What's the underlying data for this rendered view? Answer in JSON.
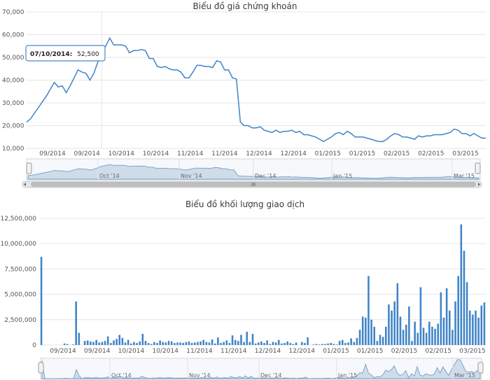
{
  "chart_data": [
    {
      "type": "line",
      "title": "Biểu đồ giá chứng khoán",
      "ylim": [
        10000,
        70000
      ],
      "y_ticks": [
        "10,000",
        "20,000",
        "30,000",
        "40,000",
        "50,000",
        "60,000",
        "70,000"
      ],
      "x_ticks": [
        "09/2014",
        "09/2014",
        "10/2014",
        "10/2014",
        "11/2014",
        "11/2014",
        "12/2014",
        "12/2014",
        "01/2015",
        "01/2015",
        "02/2015",
        "02/2015",
        "03/2015"
      ],
      "navigator_labels": [
        "Oct '14",
        "Nov '14",
        "Dec '14",
        "Jan '15",
        "Mar '15"
      ],
      "series": [
        {
          "values": [
            21500,
            23000,
            25500,
            28000,
            30500,
            33000,
            36000,
            39000,
            37000,
            37500,
            34500,
            37500,
            41000,
            44500,
            43500,
            43000,
            40000,
            43000,
            48000,
            52500,
            55000,
            58500,
            55500,
            55500,
            55500,
            55000,
            52000,
            53000,
            53000,
            53500,
            53000,
            49500,
            49500,
            46000,
            45500,
            46000,
            45000,
            44500,
            44500,
            43500,
            41000,
            41000,
            43500,
            46500,
            46500,
            46000,
            46000,
            45500,
            48500,
            48000,
            44500,
            44500,
            41000,
            40500,
            21500,
            20000,
            20000,
            19000,
            19000,
            19500,
            18000,
            17500,
            17000,
            18000,
            17000,
            17500,
            17500,
            18000,
            17000,
            17500,
            16000,
            16000,
            15500,
            15000,
            14000,
            13000,
            14000,
            15000,
            16500,
            17000,
            16000,
            17500,
            16500,
            15000,
            15000,
            15000,
            14500,
            14000,
            13500,
            13000,
            13000,
            14000,
            15500,
            16500,
            16000,
            15000,
            15000,
            14500,
            14000,
            15500,
            15000,
            15500,
            15500,
            16000,
            16000,
            16000,
            16500,
            17000,
            18500,
            18000,
            16500,
            16500,
            15500,
            16500,
            15500,
            14500,
            14500
          ]
        }
      ],
      "tooltip": {
        "date": "07/10/2014:",
        "value": "52,500"
      }
    },
    {
      "type": "bar",
      "title": "Biểu đồ khối lượng giao dịch",
      "ylim": [
        0,
        12500000
      ],
      "y_ticks": [
        "0",
        "2,500,000",
        "5,000,000",
        "7,500,000",
        "10,000,000",
        "12,500,000"
      ],
      "x_ticks": [
        "09/2014",
        "09/2014",
        "10/2014",
        "10/2014",
        "11/2014",
        "11/2014",
        "12/2014",
        "12/2014",
        "01/2015",
        "01/2015",
        "02/2015",
        "02/2015",
        "03/2015"
      ],
      "navigator_labels": [
        "Oct '14",
        "Nov '14",
        "Dec '14",
        "Jan '15",
        "Mar '15"
      ],
      "series": [
        {
          "values": [
            8700000,
            0,
            0,
            0,
            0,
            0,
            0,
            0,
            150000,
            100000,
            0,
            60000,
            4300000,
            1200000,
            0,
            400000,
            450000,
            350000,
            300000,
            500000,
            250000,
            300000,
            400000,
            850000,
            200000,
            450000,
            600000,
            1000000,
            700000,
            250000,
            500000,
            150000,
            300000,
            200000,
            350000,
            1100000,
            400000,
            200000,
            100000,
            300000,
            200000,
            450000,
            300000,
            250000,
            400000,
            350000,
            200000,
            250000,
            250000,
            200000,
            300000,
            350000,
            200000,
            250000,
            300000,
            350000,
            500000,
            300000,
            250000,
            550000,
            150000,
            750000,
            200000,
            300000,
            450000,
            200000,
            950000,
            500000,
            400000,
            1000000,
            300000,
            1300000,
            300000,
            1100000,
            150000,
            250000,
            350000,
            200000,
            450000,
            100000,
            300000,
            250000,
            500000,
            150000,
            200000,
            350000,
            200000,
            100000,
            250000,
            0,
            300000,
            200000,
            750000,
            0,
            50000,
            100000,
            50000,
            100000,
            100000,
            150000,
            200000,
            100000,
            50000,
            400000,
            500000,
            200000,
            250000,
            650000,
            300000,
            700000,
            1500000,
            2800000,
            2700000,
            6800000,
            2500000,
            1800000,
            400000,
            1000000,
            800000,
            1800000,
            4000000,
            3400000,
            4300000,
            6100000,
            2800000,
            1500000,
            2000000,
            3800000,
            400000,
            2300000,
            1200000,
            5700000,
            1700000,
            1200000,
            2300000,
            1800000,
            1600000,
            2100000,
            5200000,
            2700000,
            5600000,
            3400000,
            1500000,
            4300000,
            6800000,
            11900000,
            9300000,
            6200000,
            3400000,
            3000000,
            3400000,
            2700000,
            3900000,
            4200000
          ]
        }
      ]
    }
  ]
}
